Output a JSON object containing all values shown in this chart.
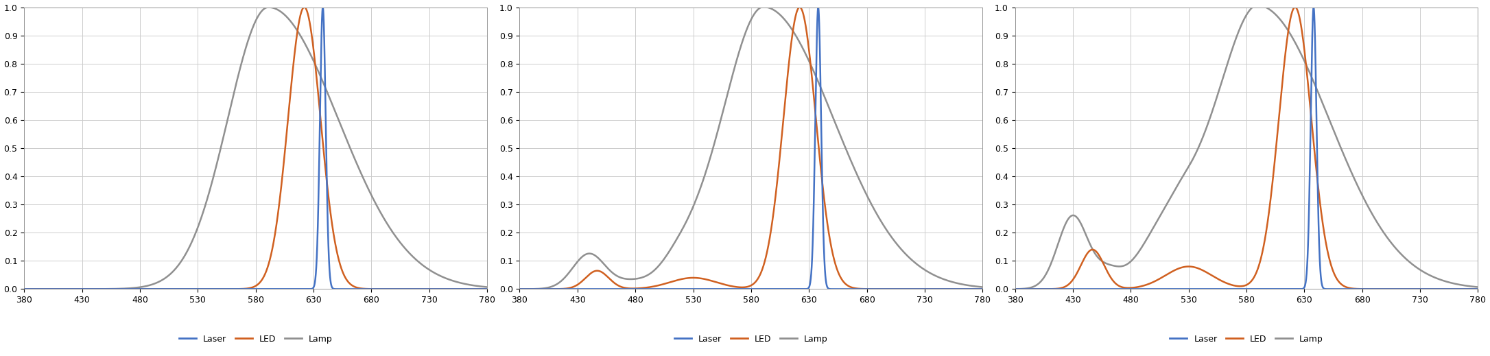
{
  "xlim": [
    380,
    780
  ],
  "ylim": [
    0,
    1
  ],
  "xticks": [
    380,
    430,
    480,
    530,
    580,
    630,
    680,
    730,
    780
  ],
  "yticks": [
    0,
    0.1,
    0.2,
    0.3,
    0.4,
    0.5,
    0.6,
    0.7,
    0.8,
    0.9,
    1
  ],
  "laser_color": "#4472c4",
  "led_color": "#d06020",
  "lamp_color": "#909090",
  "legend_labels": [
    "Laser",
    "LED",
    "Lamp"
  ],
  "figsize": [
    21.72,
    5.19
  ],
  "dpi": 100,
  "plots": [
    {
      "laser": {
        "peak": 638,
        "sigma_l": 2.5,
        "sigma_r": 2.5,
        "amplitude": 1.0
      },
      "led": {
        "peak": 622,
        "sigma_l": 14,
        "sigma_r": 14,
        "amplitude": 1.0,
        "extra_peaks": []
      },
      "lamp": {
        "peak": 591,
        "sigma_l": 35,
        "sigma_r": 60,
        "amplitude": 1.0,
        "extra_peaks": []
      }
    },
    {
      "laser": {
        "peak": 638,
        "sigma_l": 2.5,
        "sigma_r": 2.5,
        "amplitude": 1.0
      },
      "led": {
        "peak": 622,
        "sigma_l": 14,
        "sigma_r": 14,
        "amplitude": 1.0,
        "extra_peaks": [
          {
            "peak": 447,
            "sigma_l": 10,
            "sigma_r": 10,
            "amplitude": 0.065
          },
          {
            "peak": 530,
            "sigma_l": 20,
            "sigma_r": 20,
            "amplitude": 0.04
          }
        ]
      },
      "lamp": {
        "peak": 591,
        "sigma_l": 35,
        "sigma_r": 60,
        "amplitude": 1.0,
        "extra_peaks": [
          {
            "peak": 440,
            "sigma_l": 14,
            "sigma_r": 14,
            "amplitude": 0.125
          },
          {
            "peak": 475,
            "sigma_l": 14,
            "sigma_r": 14,
            "amplitude": 0.022
          },
          {
            "peak": 520,
            "sigma_l": 18,
            "sigma_r": 25,
            "amplitude": 0.08
          }
        ]
      }
    },
    {
      "laser": {
        "peak": 638,
        "sigma_l": 2.5,
        "sigma_r": 2.5,
        "amplitude": 1.0
      },
      "led": {
        "peak": 622,
        "sigma_l": 14,
        "sigma_r": 14,
        "amplitude": 1.0,
        "extra_peaks": [
          {
            "peak": 447,
            "sigma_l": 10,
            "sigma_r": 10,
            "amplitude": 0.14
          },
          {
            "peak": 530,
            "sigma_l": 20,
            "sigma_r": 20,
            "amplitude": 0.08
          }
        ]
      },
      "lamp": {
        "peak": 591,
        "sigma_l": 35,
        "sigma_r": 60,
        "amplitude": 1.0,
        "extra_peaks": [
          {
            "peak": 430,
            "sigma_l": 13,
            "sigma_r": 13,
            "amplitude": 0.26
          },
          {
            "peak": 460,
            "sigma_l": 11,
            "sigma_r": 11,
            "amplitude": 0.055
          },
          {
            "peak": 503,
            "sigma_l": 20,
            "sigma_r": 20,
            "amplitude": 0.15
          },
          {
            "peak": 530,
            "sigma_l": 18,
            "sigma_r": 25,
            "amplitude": 0.155
          }
        ]
      }
    }
  ]
}
